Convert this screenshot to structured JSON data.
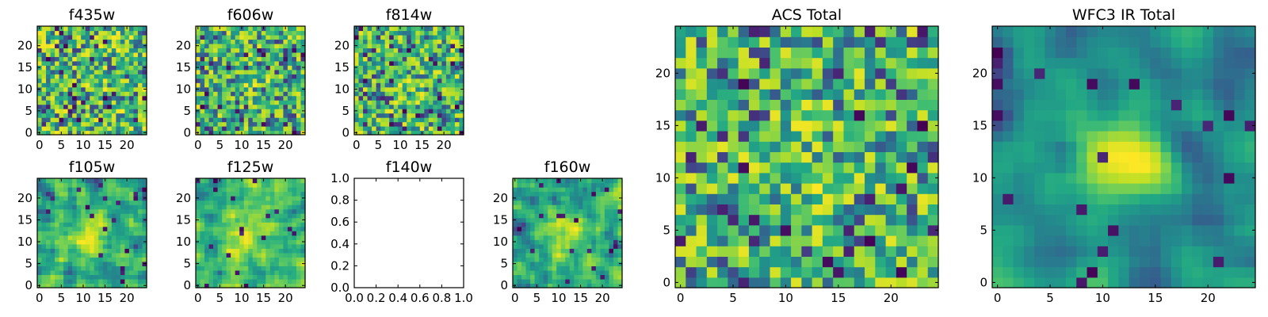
{
  "chart_data": [
    {
      "type": "heatmap",
      "panel": "small",
      "title": "f435w",
      "grid_size": 25,
      "xlim": [
        0,
        24
      ],
      "ylim": [
        0,
        24
      ],
      "xticks": [
        0,
        5,
        10,
        15,
        20
      ],
      "yticks": [
        0,
        5,
        10,
        15,
        20
      ],
      "colormap": "viridis",
      "seed": 11,
      "smooth": 0,
      "blob": 0,
      "has_data": true
    },
    {
      "type": "heatmap",
      "panel": "small",
      "title": "f606w",
      "grid_size": 25,
      "xlim": [
        0,
        24
      ],
      "ylim": [
        0,
        24
      ],
      "xticks": [
        0,
        5,
        10,
        15,
        20
      ],
      "yticks": [
        0,
        5,
        10,
        15,
        20
      ],
      "colormap": "viridis",
      "seed": 23,
      "smooth": 0,
      "blob": 0.1,
      "has_data": true
    },
    {
      "type": "heatmap",
      "panel": "small",
      "title": "f814w",
      "grid_size": 25,
      "xlim": [
        0,
        24
      ],
      "ylim": [
        0,
        24
      ],
      "xticks": [
        0,
        5,
        10,
        15,
        20
      ],
      "yticks": [
        0,
        5,
        10,
        15,
        20
      ],
      "colormap": "viridis",
      "seed": 37,
      "smooth": 0,
      "blob": 0.1,
      "has_data": true
    },
    {
      "type": "heatmap",
      "panel": "small",
      "title": "f105w",
      "grid_size": 25,
      "xlim": [
        0,
        24
      ],
      "ylim": [
        0,
        24
      ],
      "xticks": [
        0,
        5,
        10,
        15,
        20
      ],
      "yticks": [
        0,
        5,
        10,
        15,
        20
      ],
      "colormap": "viridis",
      "seed": 41,
      "smooth": 1,
      "blob": 0.25,
      "has_data": true
    },
    {
      "type": "heatmap",
      "panel": "small",
      "title": "f125w",
      "grid_size": 25,
      "xlim": [
        0,
        24
      ],
      "ylim": [
        0,
        24
      ],
      "xticks": [
        0,
        5,
        10,
        15,
        20
      ],
      "yticks": [
        0,
        5,
        10,
        15,
        20
      ],
      "colormap": "viridis",
      "seed": 53,
      "smooth": 1,
      "blob": 0.35,
      "has_data": true
    },
    {
      "type": "empty",
      "panel": "small",
      "title": "f140w",
      "xlim": [
        0.0,
        1.0
      ],
      "ylim": [
        0.0,
        1.0
      ],
      "xticks": [
        "0.0",
        "0.2",
        "0.4",
        "0.6",
        "0.8",
        "1.0"
      ],
      "yticks": [
        "0.0",
        "0.2",
        "0.4",
        "0.6",
        "0.8",
        "1.0"
      ],
      "has_data": false
    },
    {
      "type": "heatmap",
      "panel": "small",
      "title": "f160w",
      "grid_size": 25,
      "xlim": [
        0,
        24
      ],
      "ylim": [
        0,
        24
      ],
      "xticks": [
        0,
        5,
        10,
        15,
        20
      ],
      "yticks": [
        0,
        5,
        10,
        15,
        20
      ],
      "colormap": "viridis",
      "seed": 67,
      "smooth": 1,
      "blob": 0.35,
      "has_data": true
    },
    {
      "type": "heatmap",
      "panel": "large",
      "title": "ACS Total",
      "grid_size": 25,
      "xlim": [
        0,
        24
      ],
      "ylim": [
        0,
        24
      ],
      "xticks": [
        0,
        5,
        10,
        15,
        20
      ],
      "yticks": [
        0,
        5,
        10,
        15,
        20
      ],
      "colormap": "viridis",
      "seed": 79,
      "smooth": 0,
      "blob": 0.15,
      "has_data": true
    },
    {
      "type": "heatmap",
      "panel": "large",
      "title": "WFC3 IR Total",
      "grid_size": 25,
      "xlim": [
        0,
        24
      ],
      "ylim": [
        0,
        24
      ],
      "xticks": [
        0,
        5,
        10,
        15,
        20
      ],
      "yticks": [
        0,
        5,
        10,
        15,
        20
      ],
      "colormap": "viridis",
      "seed": 97,
      "smooth": 2,
      "blob": 0.6,
      "has_data": true
    }
  ]
}
